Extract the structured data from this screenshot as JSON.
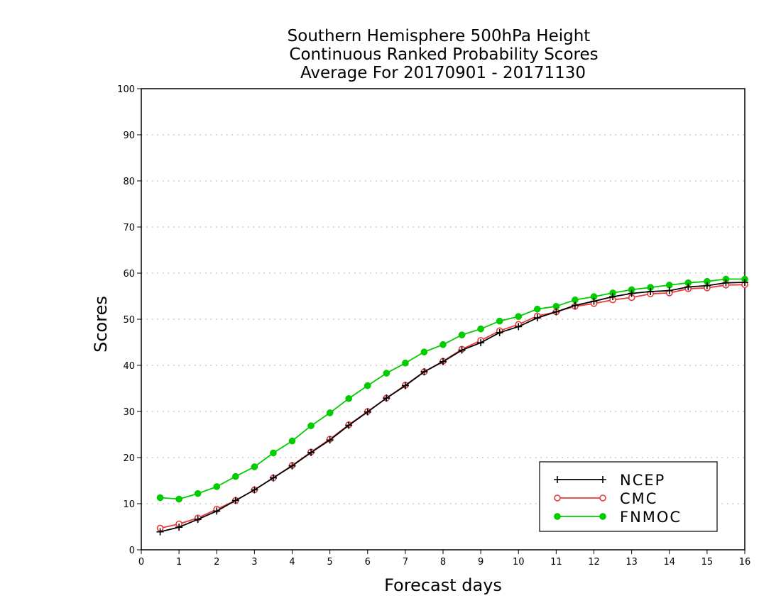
{
  "chart_data": {
    "type": "line",
    "title_lines": [
      "Southern Hemisphere 500hPa Height",
      "Continuous Ranked Probability Scores",
      "Average For 20170901 - 20171130"
    ],
    "xlabel": "Forecast days",
    "ylabel": "Scores",
    "xlim": [
      0,
      16
    ],
    "ylim": [
      0,
      100
    ],
    "x_ticks": [
      0,
      1,
      2,
      3,
      4,
      5,
      6,
      7,
      8,
      9,
      10,
      11,
      12,
      13,
      14,
      15,
      16
    ],
    "y_ticks": [
      0,
      10,
      20,
      30,
      40,
      50,
      60,
      70,
      80,
      90,
      100
    ],
    "grid": true,
    "legend_position": "bottom-right",
    "x": [
      0.5,
      1.0,
      1.5,
      2.0,
      2.5,
      3.0,
      3.5,
      4.0,
      4.5,
      5.0,
      5.5,
      6.0,
      6.5,
      7.0,
      7.5,
      8.0,
      8.5,
      9.0,
      9.5,
      10.0,
      10.5,
      11.0,
      11.5,
      12.0,
      12.5,
      13.0,
      13.5,
      14.0,
      14.5,
      15.0,
      15.5,
      16.0
    ],
    "series": [
      {
        "name": "NCEP",
        "color": "#000000",
        "marker": "plus",
        "values": [
          3.9,
          4.9,
          6.6,
          8.4,
          10.7,
          13.0,
          15.6,
          18.2,
          21.1,
          23.8,
          27.0,
          29.9,
          32.9,
          35.6,
          38.6,
          40.8,
          43.3,
          44.9,
          47.1,
          48.4,
          50.3,
          51.6,
          53.0,
          53.9,
          54.9,
          55.6,
          56.0,
          56.2,
          57.0,
          57.3,
          57.9,
          58.0
        ]
      },
      {
        "name": "CMC",
        "color": "#e8393d",
        "marker": "open-circle",
        "values": [
          4.7,
          5.6,
          6.9,
          8.8,
          10.7,
          13.0,
          15.6,
          18.3,
          21.2,
          24.0,
          27.1,
          30.0,
          32.9,
          35.7,
          38.6,
          40.9,
          43.5,
          45.4,
          47.5,
          48.9,
          50.7,
          51.6,
          52.8,
          53.4,
          54.2,
          54.7,
          55.5,
          55.7,
          56.6,
          56.8,
          57.4,
          57.5
        ]
      },
      {
        "name": "FNMOC",
        "color": "#00cc00",
        "marker": "filled-circle",
        "values": [
          11.3,
          11.0,
          12.2,
          13.7,
          15.9,
          18.0,
          21.0,
          23.6,
          26.9,
          29.7,
          32.8,
          35.6,
          38.3,
          40.5,
          42.9,
          44.5,
          46.6,
          47.9,
          49.6,
          50.6,
          52.2,
          52.8,
          54.2,
          54.9,
          55.7,
          56.4,
          56.9,
          57.4,
          57.9,
          58.2,
          58.7,
          58.7
        ]
      }
    ]
  }
}
